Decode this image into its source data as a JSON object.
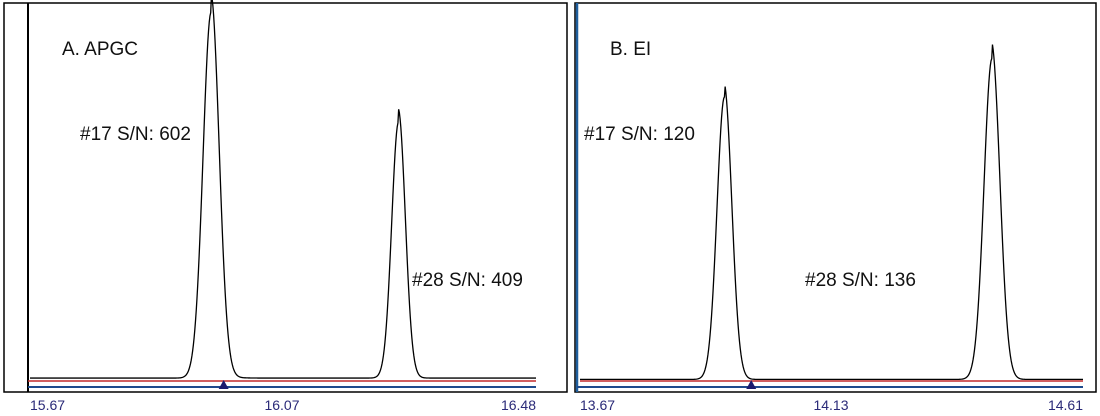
{
  "figure": {
    "background": "#ffffff",
    "frame_color": "#000000",
    "accent_frame_color": "#1f5e9c",
    "trace_color": "#000000",
    "baseline_color": "#c42a2a",
    "axis_color": "#1f4a8c",
    "tick_label_color": "#2a2a78",
    "marker_color": "#1a1a6e",
    "marker_icon": "triangle-up-marker-icon"
  },
  "chart_data": [
    {
      "type": "line",
      "title": "A.  APGC",
      "xlabel": "",
      "ylabel": "",
      "xlim": [
        15.67,
        16.48
      ],
      "ylim": [
        0,
        100
      ],
      "x_ticks": [
        "15.67",
        "16.07",
        "16.48"
      ],
      "grid": false,
      "marker_x": 15.98,
      "peaks": [
        {
          "label": "#17 S/N: 602",
          "center": 15.96,
          "height": 100,
          "width": 0.013,
          "tail": 0.012
        },
        {
          "label": "#28 S/N: 409",
          "center": 16.26,
          "height": 70,
          "width": 0.011,
          "tail": 0.008
        }
      ]
    },
    {
      "type": "line",
      "title": "B.  EI",
      "xlabel": "",
      "ylabel": "",
      "xlim": [
        13.67,
        14.61
      ],
      "ylim": [
        0,
        100
      ],
      "x_ticks": [
        "13.67",
        "14.13",
        "14.61"
      ],
      "grid": false,
      "marker_x": 13.99,
      "peaks": [
        {
          "label": "#17 S/N: 120",
          "center": 13.94,
          "height": 88,
          "width": 0.014,
          "tail": 0.006
        },
        {
          "label": "#28 S/N: 136",
          "center": 14.44,
          "height": 100,
          "width": 0.015,
          "tail": 0.007
        }
      ]
    }
  ]
}
